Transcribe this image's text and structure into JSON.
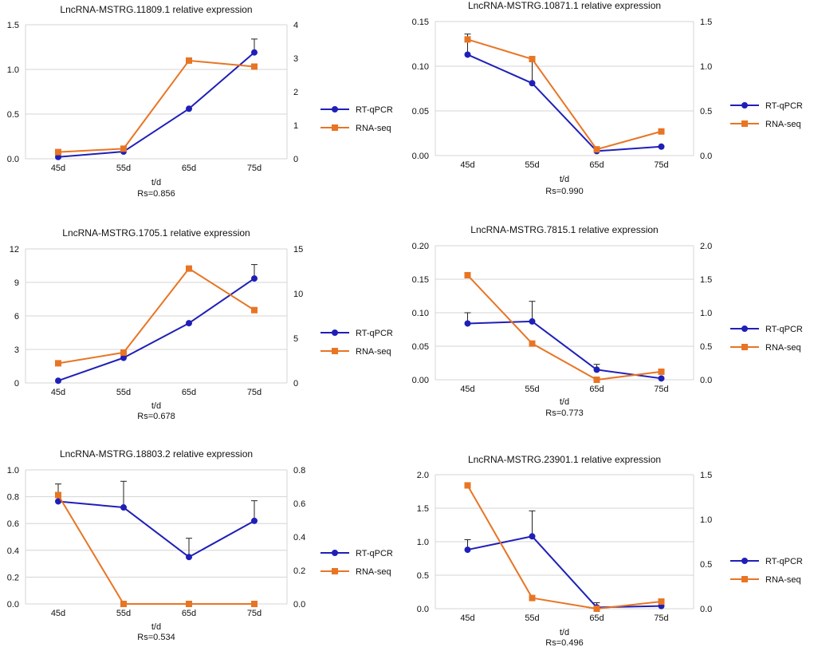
{
  "series_styles": {
    "rt_qpcr": {
      "color": "#1f1fb8",
      "marker": "circle"
    },
    "rna_seq": {
      "color": "#e87524",
      "marker": "square"
    }
  },
  "chart_data": [
    {
      "type": "line",
      "title": "LncRNA-MSTRG.11809.1 relative expression",
      "categories": [
        "45d",
        "55d",
        "65d",
        "75d"
      ],
      "xlabel": "t/d",
      "correlation": "Rs=0.856",
      "ylim_left": [
        0,
        1.5
      ],
      "yticks_left": [
        "0.0",
        "0.5",
        "1.0",
        "1.5"
      ],
      "ylim_right": [
        0,
        4
      ],
      "yticks_right": [
        "0",
        "1",
        "2",
        "3",
        "4"
      ],
      "series": [
        {
          "name": "RT-qPCR",
          "axis": "left",
          "values": [
            0.02,
            0.08,
            0.56,
            1.19
          ],
          "error_upper": [
            null,
            null,
            null,
            1.34
          ]
        },
        {
          "name": "RNA-seq",
          "axis": "right",
          "values": [
            0.2,
            0.3,
            2.93,
            2.75
          ]
        }
      ]
    },
    {
      "type": "line",
      "title": "LncRNA-MSTRG.10871.1 relative expression",
      "categories": [
        "45d",
        "55d",
        "65d",
        "75d"
      ],
      "xlabel": "t/d",
      "correlation": "Rs=0.990",
      "ylim_left": [
        0,
        0.15
      ],
      "yticks_left": [
        "0.00",
        "0.05",
        "0.10",
        "0.15"
      ],
      "ylim_right": [
        0,
        1.5
      ],
      "yticks_right": [
        "0.0",
        "0.5",
        "1.0",
        "1.5"
      ],
      "series": [
        {
          "name": "RT-qPCR",
          "axis": "left",
          "values": [
            0.113,
            0.081,
            0.005,
            0.01
          ],
          "error_upper": [
            0.136,
            0.108,
            null,
            null
          ]
        },
        {
          "name": "RNA-seq",
          "axis": "right",
          "values": [
            1.3,
            1.08,
            0.07,
            0.27
          ]
        }
      ]
    },
    {
      "type": "line",
      "title": "LncRNA-MSTRG.1705.1 relative expression",
      "categories": [
        "45d",
        "55d",
        "65d",
        "75d"
      ],
      "xlabel": "t/d",
      "correlation": "Rs=0.678",
      "ylim_left": [
        0,
        12
      ],
      "yticks_left": [
        "0",
        "3",
        "6",
        "9",
        "12"
      ],
      "ylim_right": [
        0,
        15
      ],
      "yticks_right": [
        "0",
        "5",
        "10",
        "15"
      ],
      "series": [
        {
          "name": "RT-qPCR",
          "axis": "left",
          "values": [
            0.2,
            2.25,
            5.35,
            9.35
          ],
          "error_upper": [
            null,
            null,
            null,
            10.6
          ]
        },
        {
          "name": "RNA-seq",
          "axis": "right",
          "values": [
            2.2,
            3.4,
            12.8,
            8.15
          ]
        }
      ]
    },
    {
      "type": "line",
      "title": "LncRNA-MSTRG.7815.1 relative expression",
      "categories": [
        "45d",
        "55d",
        "65d",
        "75d"
      ],
      "xlabel": "t/d",
      "correlation": "Rs=0.773",
      "ylim_left": [
        0,
        0.2
      ],
      "yticks_left": [
        "0.00",
        "0.05",
        "0.10",
        "0.15",
        "0.20"
      ],
      "ylim_right": [
        0,
        2.0
      ],
      "yticks_right": [
        "0.0",
        "0.5",
        "1.0",
        "1.5",
        "2.0"
      ],
      "series": [
        {
          "name": "RT-qPCR",
          "axis": "left",
          "values": [
            0.084,
            0.087,
            0.015,
            0.002
          ],
          "error_upper": [
            0.1,
            0.117,
            0.023,
            null
          ]
        },
        {
          "name": "RNA-seq",
          "axis": "right",
          "values": [
            1.56,
            0.54,
            0.0,
            0.12
          ]
        }
      ]
    },
    {
      "type": "line",
      "title": "LncRNA-MSTRG.18803.2 relative expression",
      "categories": [
        "45d",
        "55d",
        "65d",
        "75d"
      ],
      "xlabel": "t/d",
      "correlation": "Rs=0.534",
      "ylim_left": [
        0,
        1.0
      ],
      "yticks_left": [
        "0.0",
        "0.2",
        "0.4",
        "0.6",
        "0.8",
        "1.0"
      ],
      "ylim_right": [
        0,
        0.8
      ],
      "yticks_right": [
        "0.0",
        "0.2",
        "0.4",
        "0.6",
        "0.8"
      ],
      "series": [
        {
          "name": "RT-qPCR",
          "axis": "left",
          "values": [
            0.765,
            0.72,
            0.35,
            0.62
          ],
          "error_upper": [
            0.895,
            0.915,
            0.49,
            0.77
          ]
        },
        {
          "name": "RNA-seq",
          "axis": "right",
          "values": [
            0.65,
            0.0,
            0.0,
            0.0
          ]
        }
      ]
    },
    {
      "type": "line",
      "title": "LncRNA-MSTRG.23901.1 relative expression",
      "categories": [
        "45d",
        "55d",
        "65d",
        "75d"
      ],
      "xlabel": "t/d",
      "correlation": "Rs=0.496",
      "ylim_left": [
        0,
        2.0
      ],
      "yticks_left": [
        "0.0",
        "0.5",
        "1.0",
        "1.5",
        "2.0"
      ],
      "ylim_right": [
        0,
        1.5
      ],
      "yticks_right": [
        "0.0",
        "0.5",
        "1.0",
        "1.5"
      ],
      "series": [
        {
          "name": "RT-qPCR",
          "axis": "left",
          "values": [
            0.88,
            1.08,
            0.02,
            0.04
          ],
          "error_upper": [
            1.03,
            1.46,
            0.09,
            null
          ]
        },
        {
          "name": "RNA-seq",
          "axis": "right",
          "values": [
            1.38,
            0.12,
            0.0,
            0.08
          ]
        }
      ]
    }
  ]
}
